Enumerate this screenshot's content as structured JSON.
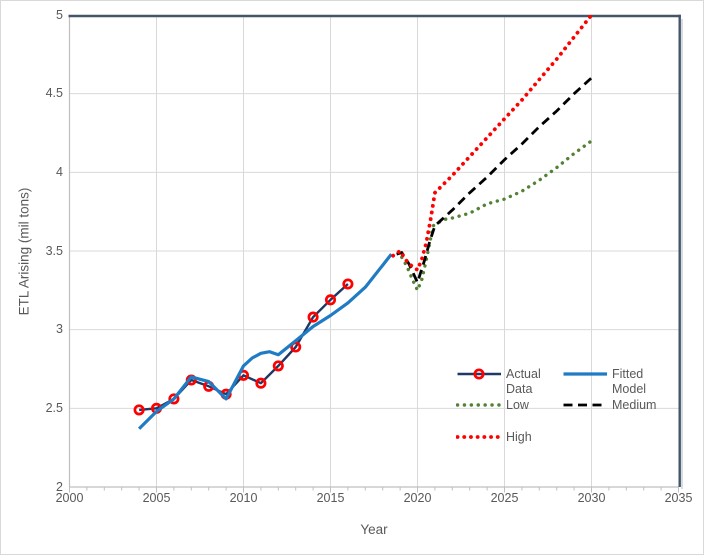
{
  "chart_data": {
    "type": "line",
    "title": "",
    "xlabel": "Year",
    "ylabel": "ETL Arising (mil tons)",
    "xlim": [
      2000,
      2035
    ],
    "ylim": [
      2,
      5
    ],
    "grid": true,
    "legend_position": "inside-lower-right",
    "x_ticks_major": [
      {
        "v": 2000,
        "label": "2000"
      },
      {
        "v": 2005,
        "label": "2005"
      },
      {
        "v": 2010,
        "label": "2010"
      },
      {
        "v": 2015,
        "label": "2015"
      },
      {
        "v": 2020,
        "label": "2020"
      },
      {
        "v": 2025,
        "label": "2025"
      },
      {
        "v": 2030,
        "label": "2030"
      },
      {
        "v": 2035,
        "label": "2035"
      }
    ],
    "x_minor_tick_interval": 1,
    "y_ticks": [
      {
        "v": 2,
        "label": "2"
      },
      {
        "v": 2.5,
        "label": "2.5"
      },
      {
        "v": 3,
        "label": "3"
      },
      {
        "v": 3.5,
        "label": "3.5"
      },
      {
        "v": 4,
        "label": "4"
      },
      {
        "v": 4.5,
        "label": "4.5"
      },
      {
        "v": 5,
        "label": "5"
      }
    ],
    "series": [
      {
        "name": "Actual Data",
        "style": "solid-marker",
        "color": "#1F3864",
        "marker": "open-circle",
        "marker_color": "#FF0000",
        "x": [
          2004,
          2005,
          2006,
          2007,
          2008,
          2009,
          2010,
          2011,
          2012,
          2013,
          2014,
          2015,
          2016
        ],
        "y": [
          2.49,
          2.5,
          2.56,
          2.68,
          2.64,
          2.59,
          2.71,
          2.66,
          2.77,
          2.89,
          3.08,
          3.19,
          3.29
        ]
      },
      {
        "name": "Fitted Model",
        "style": "solid",
        "color": "#1F7BC4",
        "x": [
          2004,
          2005,
          2006,
          2007,
          2008,
          2009,
          2010,
          2010.5,
          2011,
          2011.5,
          2012,
          2013,
          2014,
          2015,
          2016,
          2017,
          2018,
          2018.5
        ],
        "y": [
          2.37,
          2.48,
          2.56,
          2.7,
          2.67,
          2.56,
          2.77,
          2.82,
          2.85,
          2.86,
          2.84,
          2.93,
          3.02,
          3.09,
          3.17,
          3.27,
          3.41,
          3.48
        ]
      },
      {
        "name": "Low",
        "style": "dotted",
        "color": "#548235",
        "x": [
          2019.1,
          2019.4,
          2019.7,
          2020,
          2020.25,
          2020.5,
          2020.9,
          2021.5,
          2022,
          2023,
          2024,
          2025,
          2026,
          2027,
          2028,
          2029,
          2030
        ],
        "y": [
          3.46,
          3.4,
          3.32,
          3.25,
          3.32,
          3.44,
          3.66,
          3.7,
          3.71,
          3.74,
          3.8,
          3.83,
          3.88,
          3.95,
          4.03,
          4.12,
          4.2
        ]
      },
      {
        "name": "Medium",
        "style": "dashed",
        "color": "#000000",
        "x": [
          2018.8,
          2019.1,
          2019.5,
          2020,
          2020.4,
          2020.7,
          2021,
          2022,
          2023,
          2024,
          2025,
          2026,
          2027,
          2028,
          2029,
          2030
        ],
        "y": [
          3.48,
          3.49,
          3.42,
          3.3,
          3.44,
          3.56,
          3.66,
          3.76,
          3.87,
          3.97,
          4.08,
          4.18,
          4.29,
          4.39,
          4.5,
          4.6
        ]
      },
      {
        "name": "High",
        "style": "dotted-bold",
        "color": "#FF0000",
        "x": [
          2018.6,
          2019,
          2019.35,
          2019.7,
          2020,
          2020.25,
          2020.5,
          2020.75,
          2021,
          2022,
          2023,
          2024,
          2025,
          2026,
          2027,
          2028,
          2029,
          2030
        ],
        "y": [
          3.47,
          3.5,
          3.44,
          3.4,
          3.38,
          3.45,
          3.55,
          3.7,
          3.87,
          3.98,
          4.1,
          4.22,
          4.34,
          4.46,
          4.59,
          4.72,
          4.86,
          5.0
        ]
      }
    ],
    "colors": {
      "gridline": "#D9D9D9",
      "axis_line": "#BFBFBF",
      "plot_border": "#44546A",
      "border_shadow": "#CDD2DA",
      "text": "#595959",
      "background": "#FFFFFF",
      "figure_border": "#D9D9D9"
    }
  },
  "legend": {
    "items": [
      {
        "series": 0
      },
      {
        "series": 1
      },
      {
        "series": 2
      },
      {
        "series": 3
      },
      {
        "series": 4
      }
    ]
  }
}
